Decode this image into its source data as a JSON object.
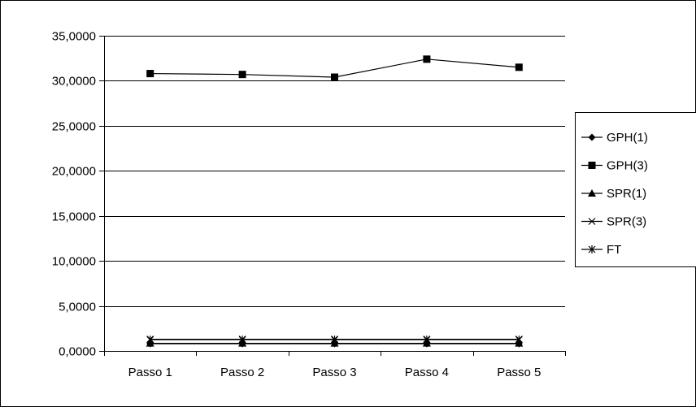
{
  "chart_data": {
    "type": "line",
    "title": "",
    "xlabel": "",
    "ylabel": "",
    "categories": [
      "Passo 1",
      "Passo 2",
      "Passo 3",
      "Passo 4",
      "Passo 5"
    ],
    "ylim": [
      0,
      35
    ],
    "yticks": [
      0,
      5,
      10,
      15,
      20,
      25,
      30,
      35
    ],
    "ytick_labels": [
      "0,0000",
      "5,0000",
      "10,0000",
      "15,0000",
      "20,0000",
      "25,0000",
      "30,0000",
      "35,0000"
    ],
    "grid": "horizontal",
    "legend_position": "right",
    "series": [
      {
        "name": "GPH(1)",
        "marker": "diamond",
        "values": [
          0.8,
          0.8,
          0.8,
          0.8,
          0.8
        ]
      },
      {
        "name": "GPH(3)",
        "marker": "square",
        "values": [
          30.8,
          30.7,
          30.4,
          32.4,
          31.5
        ]
      },
      {
        "name": "SPR(1)",
        "marker": "triangle",
        "values": [
          0.85,
          0.85,
          0.85,
          0.85,
          0.85
        ]
      },
      {
        "name": "SPR(3)",
        "marker": "x",
        "values": [
          1.3,
          1.3,
          1.3,
          1.3,
          1.3
        ]
      },
      {
        "name": "FT",
        "marker": "star",
        "values": [
          1.25,
          1.25,
          1.25,
          1.25,
          1.25
        ]
      }
    ],
    "line_color": "#000000"
  }
}
